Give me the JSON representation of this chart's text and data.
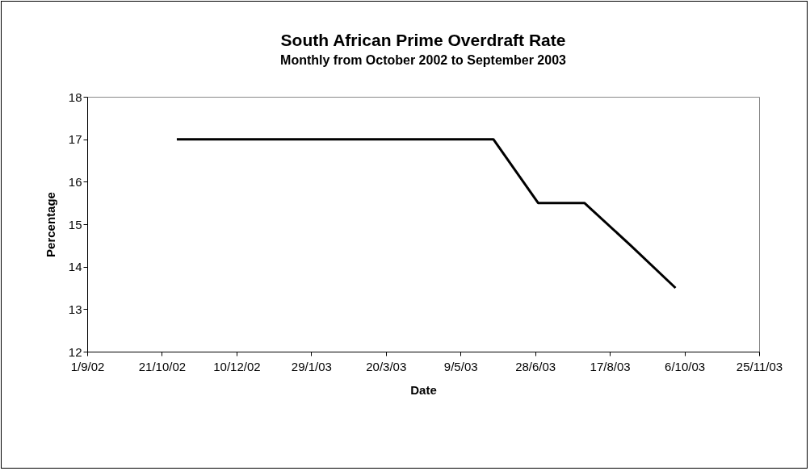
{
  "chart_data": {
    "type": "line",
    "title": "South African Prime Overdraft Rate",
    "subtitle": "Monthly from October 2002 to September 2003",
    "xlabel": "Date",
    "ylabel": "Percentage",
    "x": [
      "2002-10-31",
      "2002-11-30",
      "2002-12-31",
      "2003-01-31",
      "2003-02-28",
      "2003-03-31",
      "2003-04-30",
      "2003-05-31",
      "2003-06-30",
      "2003-07-31",
      "2003-08-31",
      "2003-09-30"
    ],
    "series": [
      {
        "color": "#000000",
        "values": [
          17,
          17,
          17,
          17,
          17,
          17,
          17,
          17,
          15.5,
          15.5,
          14.5,
          13.5
        ]
      }
    ],
    "xlim": [
      "2002-09-01",
      "2003-11-25"
    ],
    "xticks": [
      {
        "value": "2002-09-01",
        "label": "1/9/02"
      },
      {
        "value": "2002-10-21",
        "label": "21/10/02"
      },
      {
        "value": "2002-12-10",
        "label": "10/12/02"
      },
      {
        "value": "2003-01-29",
        "label": "29/1/03"
      },
      {
        "value": "2003-03-20",
        "label": "20/3/03"
      },
      {
        "value": "2003-05-09",
        "label": "9/5/03"
      },
      {
        "value": "2003-06-28",
        "label": "28/6/03"
      },
      {
        "value": "2003-08-17",
        "label": "17/8/03"
      },
      {
        "value": "2003-10-06",
        "label": "6/10/03"
      },
      {
        "value": "2003-11-25",
        "label": "25/11/03"
      }
    ],
    "ylim": [
      12,
      18
    ],
    "yticks": [
      12,
      13,
      14,
      15,
      16,
      17,
      18
    ],
    "grid": false,
    "legend": false,
    "marker": "none",
    "line_style": "solid"
  }
}
